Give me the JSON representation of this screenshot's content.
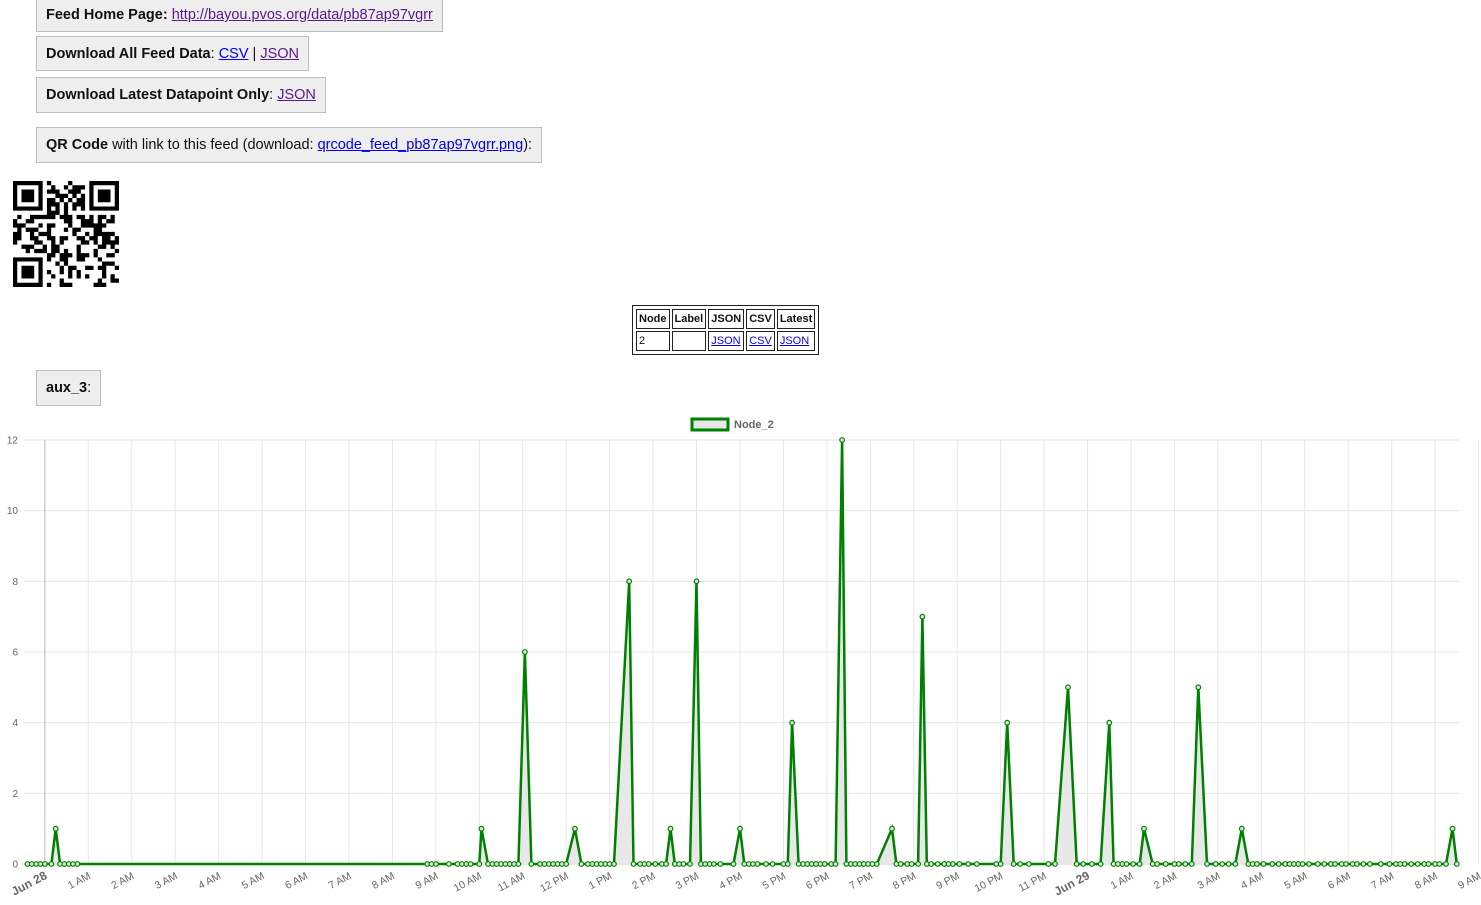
{
  "feed_home": {
    "label": "Feed Home Page:",
    "url": "http://bayou.pvos.org/data/pb87ap97vgrr"
  },
  "download_all": {
    "label": "Download All Feed Data",
    "sep1": ":",
    "csv": "CSV",
    "sep2": "|",
    "json": "JSON"
  },
  "download_latest": {
    "label": "Download Latest Datapoint Only",
    "sep": ":",
    "json": "JSON"
  },
  "qr_section": {
    "label": "QR Code",
    "text_before": "with link to this feed (download:",
    "file": "qrcode_feed_pb87ap97vgrr.png",
    "text_after": "):"
  },
  "nodes_table": {
    "headers": [
      "Node",
      "Label",
      "JSON",
      "CSV",
      "Latest"
    ],
    "row": {
      "node": "2",
      "label": "",
      "json": "JSON",
      "csv": "CSV",
      "latest": "JSON"
    }
  },
  "field_label": {
    "name": "aux_3",
    "colon": ":"
  },
  "chart_data": {
    "type": "area",
    "legend": [
      "Node_2"
    ],
    "legend_position": "top",
    "grid": true,
    "ylim": [
      0,
      12
    ],
    "y_ticks": [
      0,
      2,
      4,
      6,
      8,
      10,
      12
    ],
    "x_ticks": [
      "Jun 28",
      "1 AM",
      "2 AM",
      "3 AM",
      "4 AM",
      "5 AM",
      "6 AM",
      "7 AM",
      "8 AM",
      "9 AM",
      "10 AM",
      "11 AM",
      "12 PM",
      "1 PM",
      "2 PM",
      "3 PM",
      "4 PM",
      "5 PM",
      "6 PM",
      "7 PM",
      "8 PM",
      "9 PM",
      "10 PM",
      "11 PM",
      "Jun 29",
      "1 AM",
      "2 AM",
      "3 AM",
      "4 AM",
      "5 AM",
      "6 AM",
      "7 AM",
      "8 AM",
      "9 AM"
    ],
    "x_unit": "hours since Jun 28 12 AM",
    "colors": {
      "line": "#008000",
      "fill": "#e6e6e6",
      "grid": "#e6e6e6"
    },
    "series": [
      {
        "name": "Node_2",
        "x": [
          -0.4,
          -0.3,
          -0.2,
          -0.1,
          0.0,
          0.15,
          0.25,
          0.35,
          0.45,
          0.55,
          0.65,
          0.75,
          8.8,
          8.9,
          9.0,
          9.3,
          9.5,
          9.6,
          9.7,
          9.8,
          10.0,
          10.05,
          10.2,
          10.3,
          10.4,
          10.5,
          10.6,
          10.7,
          10.8,
          10.9,
          11.05,
          11.2,
          11.4,
          11.5,
          11.6,
          11.7,
          11.8,
          11.9,
          12.0,
          12.2,
          12.35,
          12.5,
          12.6,
          12.7,
          12.8,
          12.9,
          13.0,
          13.1,
          13.45,
          13.55,
          13.7,
          13.8,
          13.9,
          14.05,
          14.2,
          14.3,
          14.4,
          14.5,
          14.6,
          14.7,
          14.85,
          15.0,
          15.1,
          15.2,
          15.3,
          15.4,
          15.55,
          15.85,
          16.0,
          16.1,
          16.2,
          16.3,
          16.4,
          16.6,
          16.75,
          17.0,
          17.1,
          17.2,
          17.35,
          17.45,
          17.55,
          17.65,
          17.75,
          17.85,
          17.95,
          18.1,
          18.2,
          18.35,
          18.45,
          18.55,
          18.65,
          18.75,
          18.85,
          18.95,
          19.05,
          19.15,
          19.5,
          19.6,
          19.7,
          19.85,
          19.95,
          20.1,
          20.2,
          20.3,
          20.4,
          20.55,
          20.7,
          20.8,
          20.9,
          21.05,
          21.25,
          21.45,
          21.9,
          22.0,
          22.15,
          22.3,
          22.45,
          22.65,
          23.1,
          23.25,
          23.55,
          23.75,
          23.9,
          24.1,
          24.3,
          24.5,
          24.6,
          24.7,
          24.8,
          24.9,
          25.05,
          25.2,
          25.3,
          25.5,
          25.6,
          25.8,
          26.0,
          26.1,
          26.25,
          26.4,
          26.55,
          26.75,
          26.95,
          27.1,
          27.25,
          27.4,
          27.55,
          27.7,
          27.8,
          27.9,
          28.05,
          28.25,
          28.4,
          28.55,
          28.65,
          28.75,
          28.85,
          28.95,
          29.1,
          29.3,
          29.45,
          29.6,
          29.7,
          29.85,
          29.95,
          30.1,
          30.2,
          30.35,
          30.5,
          30.75,
          30.95,
          31.1,
          31.2,
          31.3,
          31.45,
          31.6,
          31.75,
          31.85,
          32.0,
          32.1,
          32.25,
          32.4,
          32.5
        ],
        "y": [
          0,
          0,
          0,
          0,
          0,
          0,
          1,
          0,
          0,
          0,
          0,
          0,
          0,
          0,
          0,
          0,
          0,
          0,
          0,
          0,
          0,
          1,
          0,
          0,
          0,
          0,
          0,
          0,
          0,
          0,
          6,
          0,
          0,
          0,
          0,
          0,
          0,
          0,
          0,
          1,
          0,
          0,
          0,
          0,
          0,
          0,
          0,
          0,
          8,
          0,
          0,
          0,
          0,
          0,
          0,
          0,
          1,
          0,
          0,
          0,
          0,
          8,
          0,
          0,
          0,
          0,
          0,
          0,
          1,
          0,
          0,
          0,
          0,
          0,
          0,
          0,
          0,
          4,
          0,
          0,
          0,
          0,
          0,
          0,
          0,
          0,
          0,
          12,
          0,
          0,
          0,
          0,
          0,
          0,
          0,
          0,
          1,
          0,
          0,
          0,
          0,
          0,
          7,
          0,
          0,
          0,
          0,
          0,
          0,
          0,
          0,
          0,
          0,
          0,
          4,
          0,
          0,
          0,
          0,
          0,
          5,
          0,
          0,
          0,
          0,
          4,
          0,
          0,
          0,
          0,
          0,
          0,
          1,
          0,
          0,
          0,
          0,
          0,
          0,
          0,
          5,
          0,
          0,
          0,
          0,
          0,
          1,
          0,
          0,
          0,
          0,
          0,
          0,
          0,
          0,
          0,
          0,
          0,
          0,
          0,
          0,
          0,
          0,
          0,
          0,
          0,
          0,
          0,
          0,
          0,
          0,
          0,
          0,
          0,
          0,
          0,
          0,
          0,
          0,
          0,
          0,
          1,
          0
        ]
      }
    ]
  }
}
